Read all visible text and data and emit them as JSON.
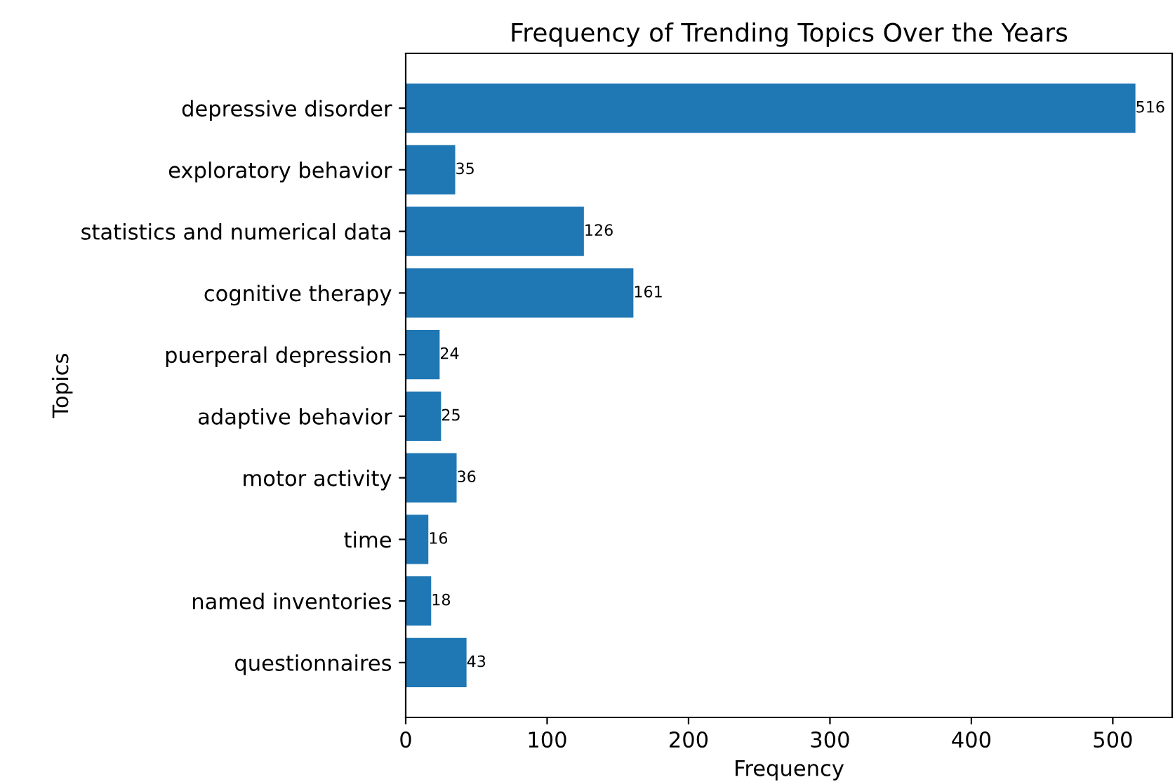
{
  "chart_data": {
    "type": "bar",
    "orientation": "horizontal",
    "title": "Frequency of Trending Topics Over the Years",
    "xlabel": "Frequency",
    "ylabel": "Topics",
    "categories": [
      "depressive disorder",
      "exploratory behavior",
      "statistics and numerical data",
      "cognitive therapy",
      "puerperal depression",
      "adaptive behavior",
      "motor activity",
      "time",
      "named inventories",
      "questionnaires"
    ],
    "values": [
      516,
      35,
      126,
      161,
      24,
      25,
      36,
      16,
      18,
      43
    ],
    "color": "#1f77b4",
    "xlim": [
      0,
      542
    ],
    "xticks": [
      0,
      100,
      200,
      300,
      400,
      500
    ],
    "data_labels": true,
    "grid": false,
    "legend": false
  }
}
